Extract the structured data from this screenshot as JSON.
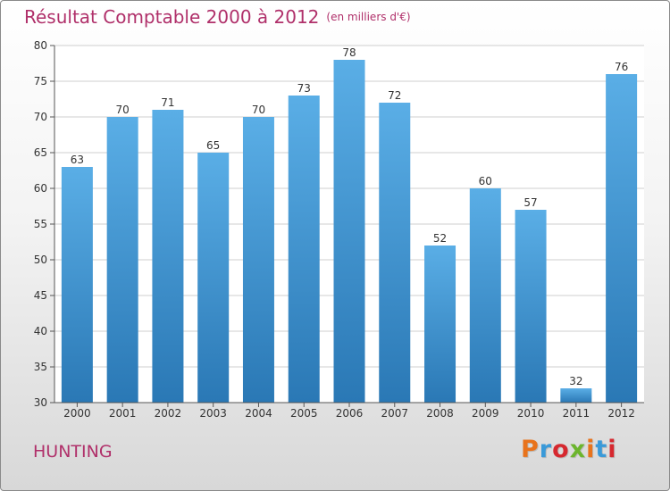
{
  "header": {
    "title": "Résultat Comptable 2000 à 2012",
    "subtitle": "(en milliers d'€)"
  },
  "commune": "HUNTING",
  "logo": {
    "text": "Proxiti",
    "colors": [
      "#e8731c",
      "#3a9ad9",
      "#d6282f",
      "#6cb52d",
      "#e8731c",
      "#3a9ad9",
      "#d6282f"
    ]
  },
  "chart_data": {
    "type": "bar",
    "title": "Résultat Comptable 2000 à 2012",
    "subtitle": "(en milliers d'€)",
    "categories": [
      "2000",
      "2001",
      "2002",
      "2003",
      "2004",
      "2005",
      "2006",
      "2007",
      "2008",
      "2009",
      "2010",
      "2011",
      "2012"
    ],
    "values": [
      63,
      70,
      71,
      65,
      70,
      73,
      78,
      72,
      52,
      60,
      57,
      32,
      76
    ],
    "ylim": [
      30,
      80
    ],
    "yticks": [
      30,
      35,
      40,
      45,
      50,
      55,
      60,
      65,
      70,
      75,
      80
    ],
    "grid": true,
    "colors": {
      "bar_top": "#5aaee6",
      "bar_bottom": "#2a78b5",
      "grid": "#cfcfcf",
      "text": "#333333"
    }
  }
}
